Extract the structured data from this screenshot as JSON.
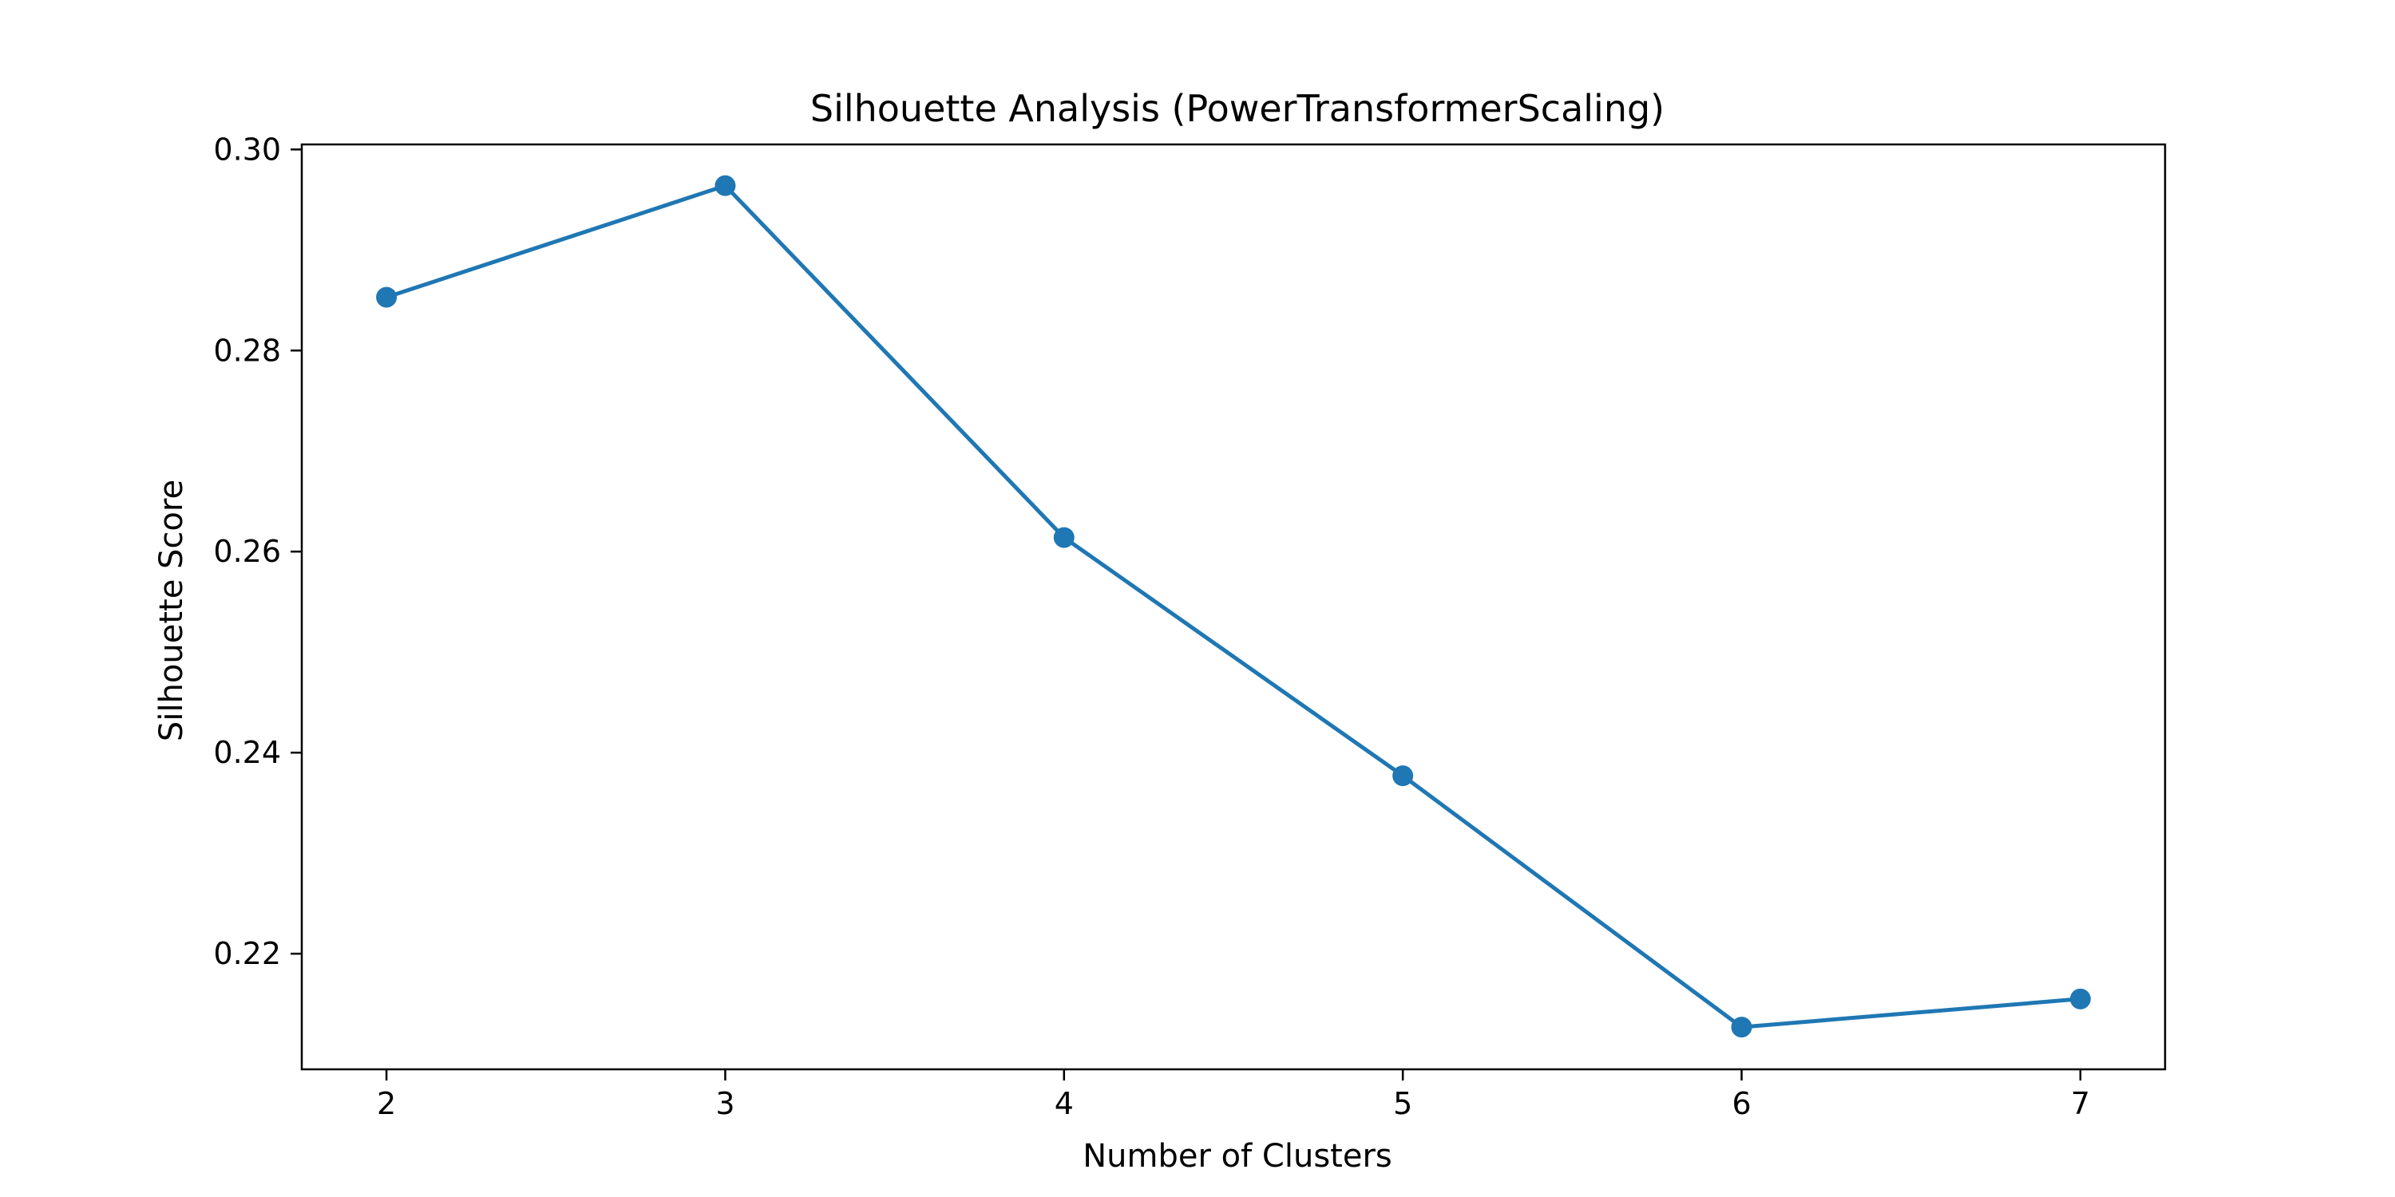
{
  "chart_data": {
    "type": "line",
    "title": "Silhouette Analysis (PowerTransformerScaling)",
    "xlabel": "Number of Clusters",
    "ylabel": "Silhouette Score",
    "x": [
      2,
      3,
      4,
      5,
      6,
      7
    ],
    "xticks": [
      "2",
      "3",
      "4",
      "5",
      "6",
      "7"
    ],
    "xlim": [
      1.75,
      7.25
    ],
    "yticks": [
      "0.22",
      "0.24",
      "0.26",
      "0.28",
      "0.30"
    ],
    "ylim": [
      0.2085,
      0.3005
    ],
    "series": [
      {
        "values": [
          0.2853,
          0.2964,
          0.2614,
          0.2377,
          0.2127,
          0.2155
        ],
        "color": "#1f77b4",
        "marker": "circle"
      }
    ],
    "grid": false,
    "legend": "none"
  }
}
